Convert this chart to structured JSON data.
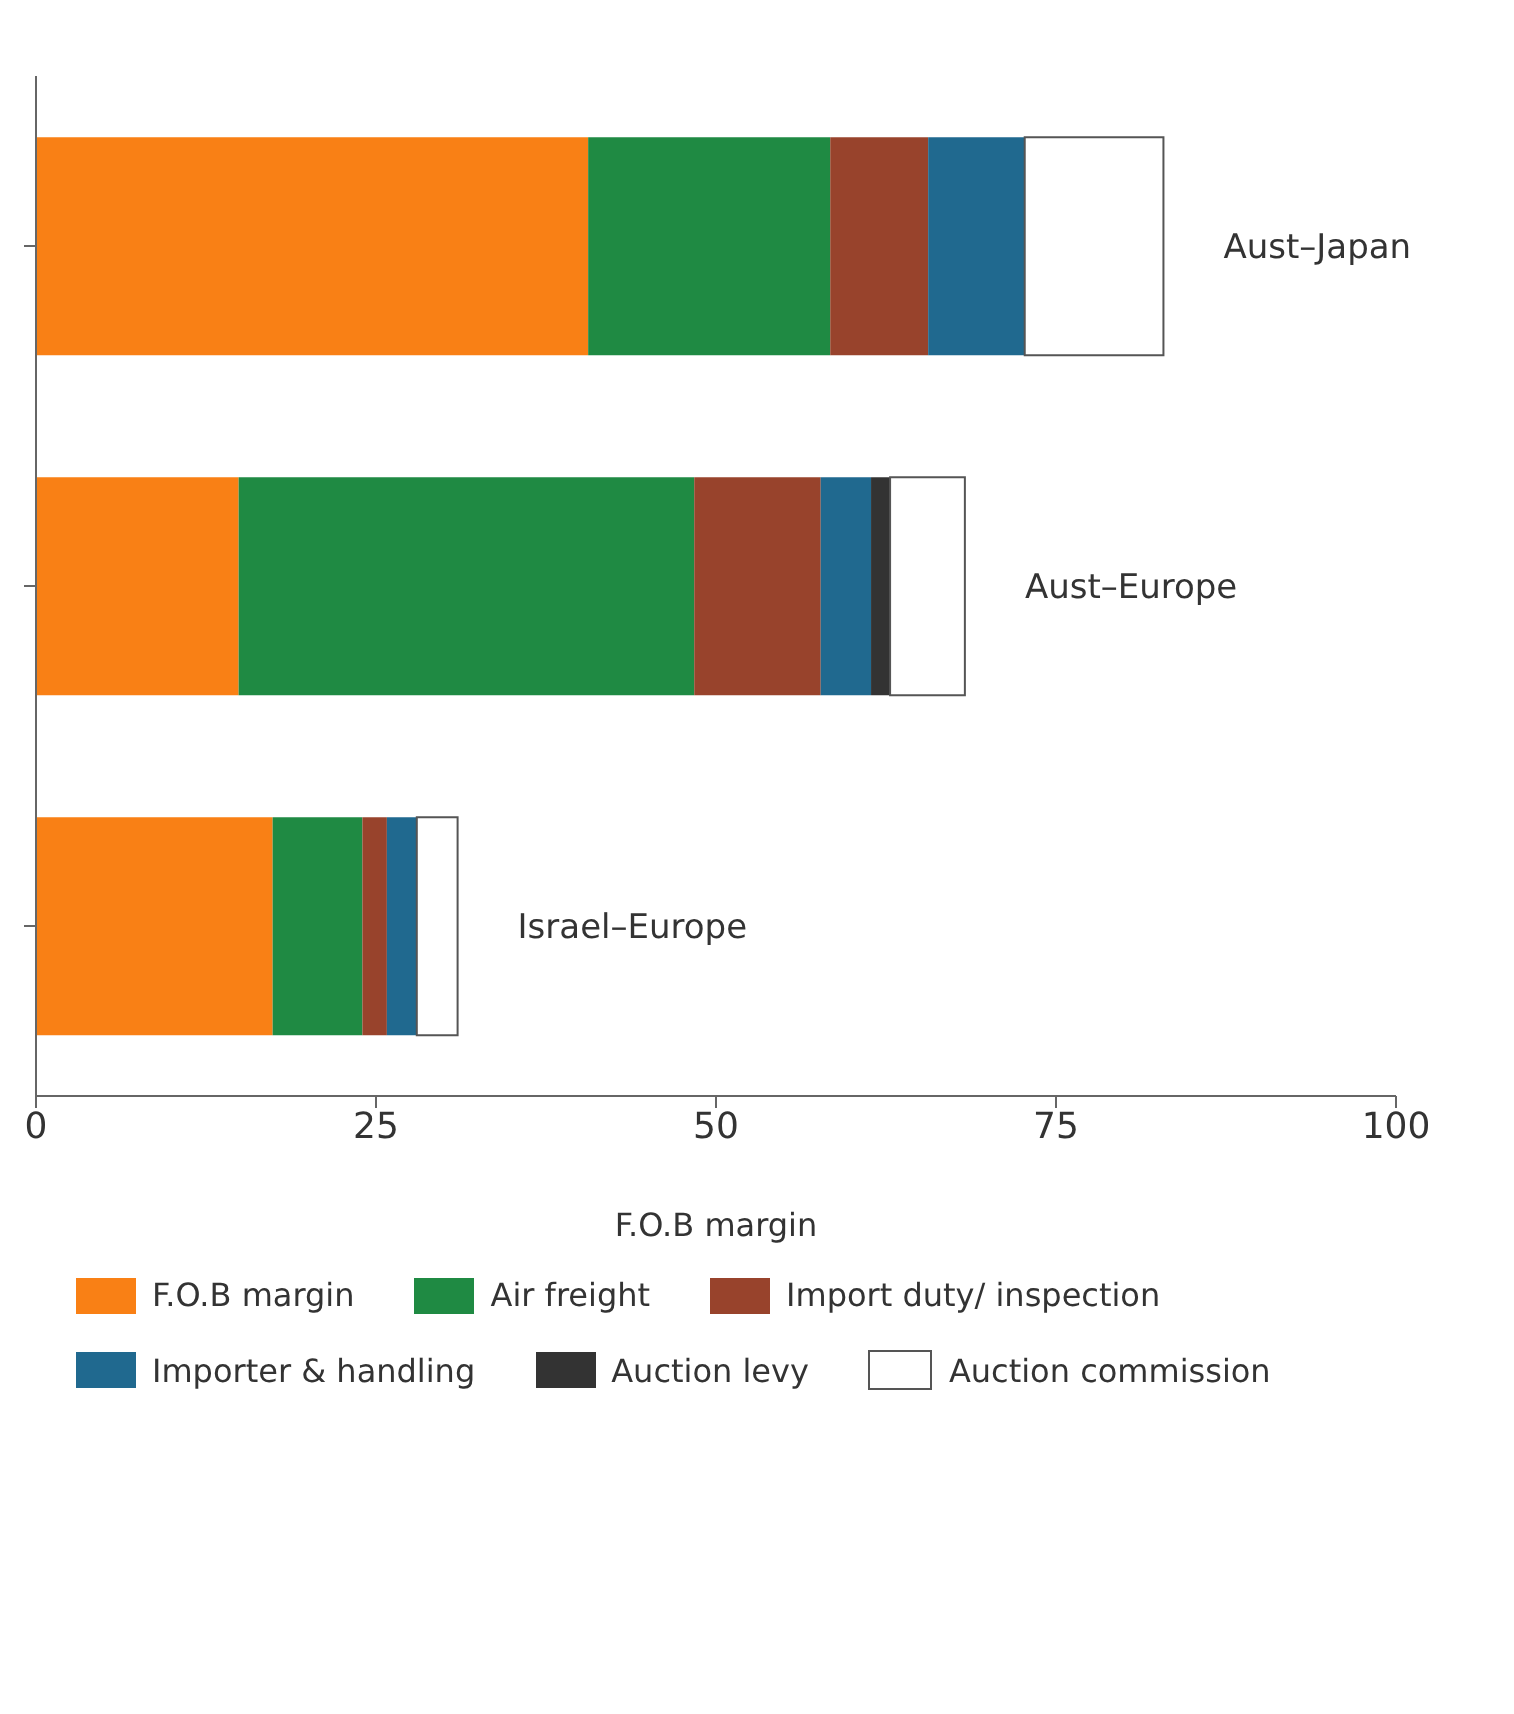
{
  "chart_data": {
    "type": "bar",
    "orientation": "horizontal",
    "stacked": true,
    "xlabel": "F.O.B margin",
    "categories": [
      "Aust–Japan",
      "Aust–Europe",
      "Israel–Europe"
    ],
    "series": [
      {
        "name": "F.O.B margin",
        "color": "#f98015",
        "values": [
          40.6,
          14.9,
          17.4
        ]
      },
      {
        "name": "Air freight",
        "color": "#1f8a43",
        "values": [
          17.8,
          33.5,
          6.6
        ]
      },
      {
        "name": "Import duty/ inspection",
        "color": "#98432c",
        "values": [
          7.2,
          9.3,
          1.8
        ]
      },
      {
        "name": "Importer & handling",
        "color": "#20698f",
        "values": [
          7.1,
          3.7,
          2.2
        ]
      },
      {
        "name": "Auction levy",
        "color": "#333333",
        "values": [
          0,
          1.4,
          0
        ]
      },
      {
        "name": "Auction commission",
        "color": "#ffffff",
        "values": [
          10.2,
          5.5,
          3.0
        ]
      }
    ],
    "xlim": [
      0,
      100
    ],
    "xticks": [
      0,
      25,
      50,
      75,
      100
    ],
    "grid": false,
    "legend": "bottom"
  }
}
